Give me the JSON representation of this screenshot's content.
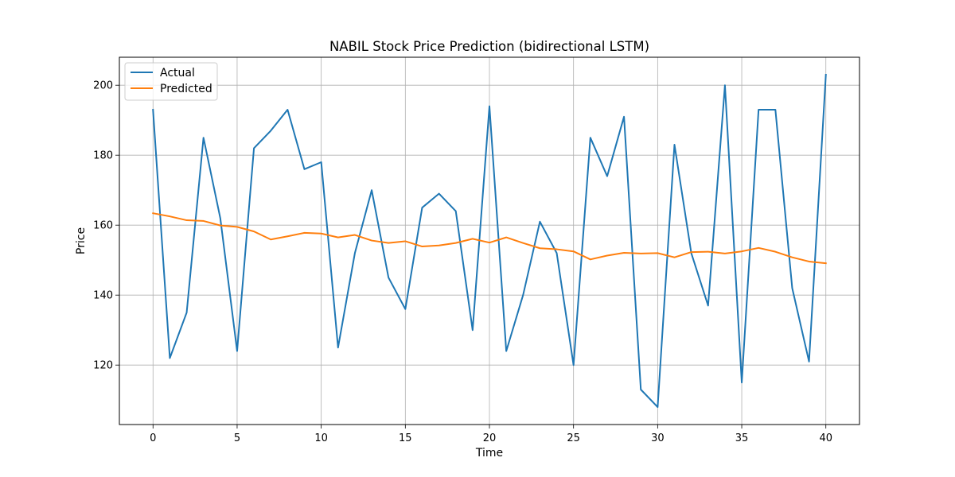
{
  "chart_data": {
    "type": "line",
    "title": "NABIL Stock Price Prediction (bidirectional LSTM)",
    "xlabel": "Time",
    "ylabel": "Price",
    "xlim": [
      -2,
      42
    ],
    "ylim": [
      103,
      208
    ],
    "xticks": [
      0,
      5,
      10,
      15,
      20,
      25,
      30,
      35,
      40
    ],
    "yticks": [
      120,
      140,
      160,
      180,
      200
    ],
    "grid": true,
    "legend_position": "upper-left",
    "x": [
      0,
      1,
      2,
      3,
      4,
      5,
      6,
      7,
      8,
      9,
      10,
      11,
      12,
      13,
      14,
      15,
      16,
      17,
      18,
      19,
      20,
      21,
      22,
      23,
      24,
      25,
      26,
      27,
      28,
      29,
      30,
      31,
      32,
      33,
      34,
      35,
      36,
      37,
      38,
      39,
      40
    ],
    "series": [
      {
        "name": "Actual",
        "color": "#1f77b4",
        "values": [
          193,
          122,
          135,
          185,
          162,
          124,
          182,
          187,
          193,
          176,
          178,
          125,
          152,
          170,
          145,
          136,
          165,
          169,
          164,
          130,
          194,
          124,
          140,
          161,
          152,
          120,
          185,
          174,
          191,
          113,
          108,
          183,
          152,
          137,
          200,
          115,
          193,
          193,
          142,
          121,
          203
        ]
      },
      {
        "name": "Predicted",
        "color": "#ff7f0e",
        "values": [
          163.4,
          162.5,
          161.4,
          161.2,
          159.9,
          159.5,
          158.2,
          155.9,
          156.8,
          157.8,
          157.6,
          156.5,
          157.2,
          155.6,
          154.9,
          155.4,
          153.9,
          154.2,
          154.9,
          156.1,
          155.0,
          156.5,
          154.9,
          153.4,
          153.1,
          152.5,
          150.2,
          151.3,
          152.1,
          151.9,
          152.0,
          150.8,
          152.3,
          152.4,
          151.9,
          152.5,
          153.5,
          152.4,
          150.8,
          149.6,
          149.1
        ]
      }
    ]
  }
}
